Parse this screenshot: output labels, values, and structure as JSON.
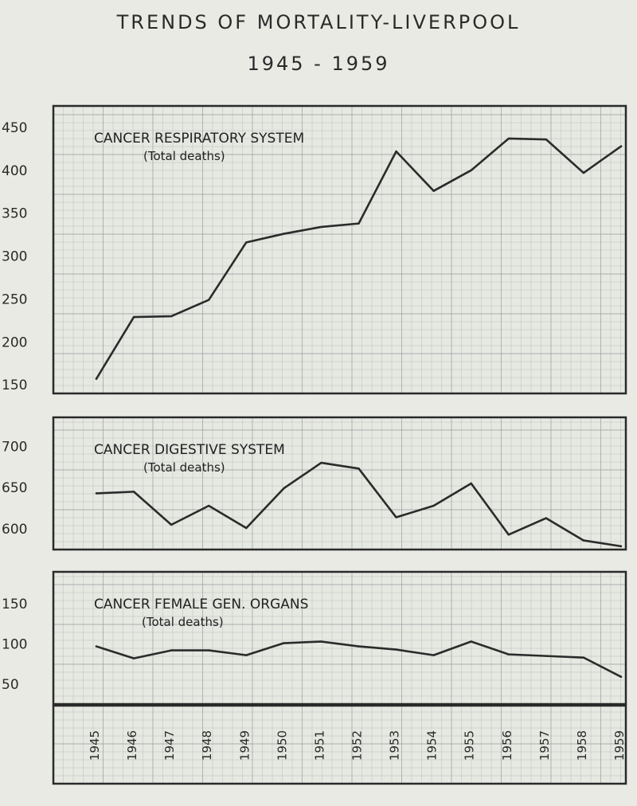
{
  "header": {
    "title": "TRENDS OF MORTALITY-LIVERPOOL",
    "period": "1945 - 1959"
  },
  "chart_data": [
    {
      "type": "line",
      "title": "CANCER RESPIRATORY SYSTEM",
      "subtitle": "(Total deaths)",
      "x": [
        1945,
        1946,
        1947,
        1948,
        1949,
        1950,
        1951,
        1952,
        1953,
        1954,
        1955,
        1956,
        1957,
        1958,
        1959
      ],
      "values": [
        157,
        229,
        230,
        249,
        316,
        326,
        334,
        338,
        422,
        376,
        400,
        437,
        436,
        397,
        428
      ],
      "yticks": [
        150,
        200,
        250,
        300,
        350,
        400,
        450
      ],
      "ylim": [
        140,
        475
      ],
      "grid": true
    },
    {
      "type": "line",
      "title": "CANCER DIGESTIVE SYSTEM",
      "subtitle": "(Total deaths)",
      "x": [
        1945,
        1946,
        1947,
        1948,
        1949,
        1950,
        1951,
        1952,
        1953,
        1954,
        1955,
        1956,
        1957,
        1958,
        1959
      ],
      "values": [
        643,
        645,
        605,
        628,
        601,
        649,
        680,
        673,
        614,
        628,
        655,
        593,
        613,
        586,
        579
      ],
      "yticks": [
        600,
        650,
        700
      ],
      "ylim": [
        575,
        735
      ],
      "grid": true
    },
    {
      "type": "line",
      "title": "CANCER FEMALE GEN. ORGANS",
      "subtitle": "(Total deaths)",
      "x": [
        1945,
        1946,
        1947,
        1948,
        1949,
        1950,
        1951,
        1952,
        1953,
        1954,
        1955,
        1956,
        1957,
        1958,
        1959
      ],
      "values": [
        97,
        82,
        92,
        92,
        86,
        101,
        103,
        97,
        93,
        86,
        103,
        87,
        85,
        83,
        59
      ],
      "yticks": [
        50,
        100,
        150
      ],
      "ylim": [
        25,
        190
      ],
      "grid": true
    }
  ],
  "xaxis": {
    "labels": [
      "1945",
      "1946",
      "1947",
      "1948",
      "1949",
      "1950",
      "1951",
      "1952",
      "1953",
      "1954",
      "1955",
      "1956",
      "1957",
      "1958",
      "1959"
    ]
  }
}
